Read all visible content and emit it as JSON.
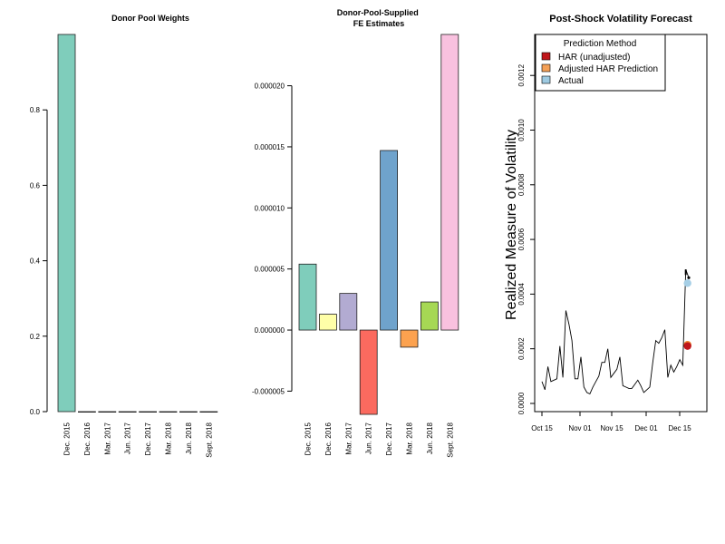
{
  "chart_data": [
    {
      "type": "bar",
      "title": "Donor Pool Weights",
      "categories": [
        "Dec. 2015",
        "Dec. 2016",
        "Mar. 2017",
        "Jun. 2017",
        "Dec. 2017",
        "Mar. 2018",
        "Jun. 2018",
        "Sept. 2018"
      ],
      "values": [
        1.0,
        0.0,
        0.0,
        0.0,
        0.0,
        0.0,
        0.0,
        0.0
      ],
      "colors": [
        "#7fcdbb",
        "#7fcdbb",
        "#7fcdbb",
        "#7fcdbb",
        "#7fcdbb",
        "#7fcdbb",
        "#7fcdbb",
        "#7fcdbb"
      ],
      "yticks": [
        "0.0",
        "0.2",
        "0.4",
        "0.6",
        "0.8"
      ],
      "ylim": [
        0,
        1.0
      ]
    },
    {
      "type": "bar",
      "title_lines": [
        "Donor-Pool-Supplied",
        "FE Estimates"
      ],
      "categories": [
        "Dec. 2015",
        "Dec. 2016",
        "Mar. 2017",
        "Jun. 2017",
        "Dec. 2017",
        "Mar. 2018",
        "Jun. 2018",
        "Sept. 2018"
      ],
      "values": [
        5.4e-06,
        1.3e-06,
        3e-06,
        -6.9e-06,
        1.47e-05,
        -1.4e-06,
        2.3e-06,
        2.42e-05
      ],
      "colors": [
        "#7fcdbb",
        "#ffffa8",
        "#b2abd2",
        "#fb6a5f",
        "#6fa3cc",
        "#fca24f",
        "#a6d854",
        "#f9c1df"
      ],
      "yticks": [
        "-0.000005",
        "0.000000",
        "0.000005",
        "0.000010",
        "0.000015",
        "0.000020"
      ],
      "ylim": [
        -6.9e-06,
        2.42e-05
      ]
    },
    {
      "type": "line",
      "title": "Post-Shock Volatility Forecast",
      "ylabel": "Realized Measure of Volatility",
      "xticks": [
        "Oct 15",
        "Nov 01",
        "Nov 15",
        "Dec 01",
        "Dec 15"
      ],
      "yticks": [
        "0.0000",
        "0.0002",
        "0.0004",
        "0.0006",
        "0.0008",
        "0.0010",
        "0.0012"
      ],
      "ylim": [
        -3e-05,
        0.00135
      ],
      "series": [
        {
          "values": [
            8e-05,
            5e-05,
            0.000135,
            8e-05,
            8.5e-05,
            9e-05,
            0.00021,
            9.5e-05,
            0.00034,
            0.00029,
            0.00023,
            9e-05,
            9e-05,
            0.00017,
            6e-05,
            4e-05,
            3.5e-05,
            6e-05,
            8e-05,
            0.0001,
            0.00015,
            0.00015,
            0.0002,
            9.5e-05,
            0.00011,
            0.000125,
            0.00017,
            6.5e-05,
            6e-05,
            5.5e-05,
            5.5e-05,
            7e-05,
            8.5e-05,
            6.5e-05,
            4e-05,
            5e-05,
            6e-05,
            0.00015,
            0.00023,
            0.00022,
            0.00024,
            0.00027,
            9.5e-05,
            0.00014,
            0.000115,
            0.000135,
            0.00016,
            0.00014,
            0.00049,
            0.00046
          ],
          "color": "#000000"
        }
      ],
      "points": [
        {
          "x_index": 48.6,
          "value": 0.000215,
          "color": "#f08a30"
        },
        {
          "x_index": 48.6,
          "value": 0.00021,
          "color": "#c0161b"
        },
        {
          "x_index": 48.6,
          "value": 0.00044,
          "color": "#a6cfe6"
        }
      ],
      "legend_title": "Prediction Method",
      "legend_position": "top-left",
      "legend": [
        {
          "label": "HAR (unadjusted)",
          "color": "#c0161b"
        },
        {
          "label": "Adjusted HAR Prediction",
          "color": "#f4a057"
        },
        {
          "label": "Actual",
          "color": "#9ecae1"
        }
      ]
    }
  ]
}
